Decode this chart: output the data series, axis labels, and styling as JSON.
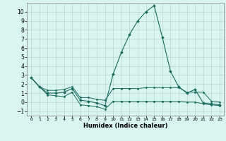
{
  "xlabel": "Humidex (Indice chaleur)",
  "x": [
    0,
    1,
    2,
    3,
    4,
    5,
    6,
    7,
    8,
    9,
    10,
    11,
    12,
    13,
    14,
    15,
    16,
    17,
    18,
    19,
    20,
    21,
    22,
    23
  ],
  "y_main": [
    2.7,
    1.7,
    1.0,
    1.0,
    1.1,
    1.5,
    0.2,
    0.1,
    -0.1,
    -0.4,
    3.1,
    5.5,
    7.5,
    9.0,
    10.0,
    10.7,
    7.2,
    3.4,
    1.7,
    1.0,
    1.4,
    -0.1,
    -0.2,
    -0.3
  ],
  "y_upper": [
    2.7,
    1.7,
    1.3,
    1.3,
    1.4,
    1.7,
    0.5,
    0.5,
    0.3,
    0.2,
    1.5,
    1.5,
    1.5,
    1.5,
    1.6,
    1.6,
    1.6,
    1.6,
    1.6,
    1.1,
    1.1,
    1.1,
    0.1,
    0.0
  ],
  "y_lower": [
    2.7,
    1.7,
    0.8,
    0.7,
    0.6,
    1.1,
    -0.3,
    -0.4,
    -0.5,
    -0.8,
    0.1,
    0.1,
    0.1,
    0.1,
    0.1,
    0.1,
    0.1,
    0.1,
    0.1,
    0.0,
    0.0,
    -0.2,
    -0.3,
    -0.4
  ],
  "line_color": "#1a6b5a",
  "bg_color": "#d8f5f0",
  "grid_color": "#b8d4d0",
  "ylim": [
    -1.5,
    11.0
  ],
  "xlim": [
    -0.5,
    23.5
  ],
  "yticks": [
    -1,
    0,
    1,
    2,
    3,
    4,
    5,
    6,
    7,
    8,
    9,
    10
  ],
  "xticks": [
    0,
    1,
    2,
    3,
    4,
    5,
    6,
    7,
    8,
    9,
    10,
    11,
    12,
    13,
    14,
    15,
    16,
    17,
    18,
    19,
    20,
    21,
    22,
    23
  ]
}
